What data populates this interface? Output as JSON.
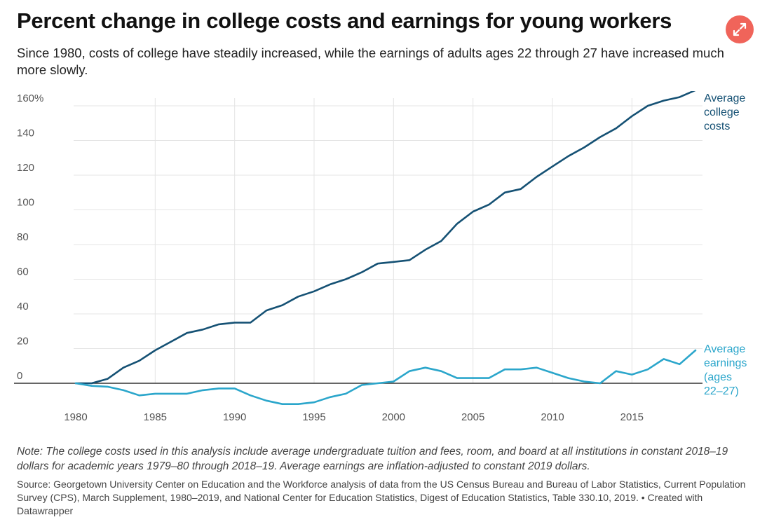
{
  "header": {
    "title": "Percent change in college costs and earnings for young workers",
    "subtitle": "Since 1980, costs of college have steadily increased, while the earnings of adults ages 22 through 27 have increased much more slowly."
  },
  "footer": {
    "note": "Note: The college costs used in this analysis include average undergraduate tuition and fees, room, and board at all institutions in constant 2018–19 dollars for academic years 1979–80 through 2018–19. Average earnings are inflation-adjusted to constant 2019 dollars.",
    "source": "Source: Georgetown University Center on Education and the Workforce analysis of data from the US Census Bureau and Bureau of Labor Statistics, Current Population Survey (CPS), March Supplement, 1980–2019, and National Center for Education Statistics, Digest of Education Statistics, Table 330.10, 2019. • Created with Datawrapper"
  },
  "icons": {
    "expand": "expand-icon"
  },
  "colors": {
    "expand_button": "#f0645a",
    "grid": "#e4e4e4",
    "zero_line": "#333333"
  },
  "chart_data": {
    "type": "line",
    "title": "Percent change in college costs and earnings for young workers",
    "xlabel": "",
    "ylabel": "",
    "xlim": [
      1980,
      2019
    ],
    "ylim": [
      -12,
      170
    ],
    "x_ticks": [
      1980,
      1985,
      1990,
      1995,
      2000,
      2005,
      2010,
      2015
    ],
    "y_ticks": [
      {
        "value": 160,
        "label": "160%"
      },
      {
        "value": 140,
        "label": "140"
      },
      {
        "value": 120,
        "label": "120"
      },
      {
        "value": 100,
        "label": "100"
      },
      {
        "value": 80,
        "label": "80"
      },
      {
        "value": 60,
        "label": "60"
      },
      {
        "value": 40,
        "label": "40"
      },
      {
        "value": 20,
        "label": "20"
      },
      {
        "value": 0,
        "label": "0"
      }
    ],
    "grid": true,
    "x": [
      1980,
      1981,
      1982,
      1983,
      1984,
      1985,
      1986,
      1987,
      1988,
      1989,
      1990,
      1991,
      1992,
      1993,
      1994,
      1995,
      1996,
      1997,
      1998,
      1999,
      2000,
      2001,
      2002,
      2003,
      2004,
      2005,
      2006,
      2007,
      2008,
      2009,
      2010,
      2011,
      2012,
      2013,
      2014,
      2015,
      2016,
      2017,
      2018,
      2019
    ],
    "series": [
      {
        "name": "Average college costs",
        "label_lines": [
          "Average",
          "college",
          "costs"
        ],
        "color": "#155174",
        "values": [
          0,
          0,
          2.5,
          9,
          13,
          19,
          24,
          29,
          31,
          34,
          35,
          35,
          42,
          45,
          50,
          53,
          57,
          60,
          64,
          69,
          70,
          71,
          77,
          82,
          92,
          99,
          103,
          110,
          112,
          119,
          125,
          131,
          136,
          142,
          147,
          154,
          160,
          163,
          165,
          169
        ]
      },
      {
        "name": "Average earnings (ages 22–27)",
        "label_lines": [
          "Average",
          "earnings",
          "(ages",
          "22–27)"
        ],
        "color": "#2ba6cb",
        "values": [
          0,
          -1.5,
          -2,
          -4,
          -7,
          -6,
          -6,
          -6,
          -4,
          -3,
          -3,
          -7,
          -10,
          -12,
          -12,
          -11,
          -8,
          -6,
          -1,
          0,
          1,
          7,
          9,
          7,
          3,
          3,
          3,
          8,
          8,
          9,
          6,
          3,
          1,
          0,
          7,
          5,
          8,
          14,
          11,
          19
        ]
      }
    ]
  }
}
